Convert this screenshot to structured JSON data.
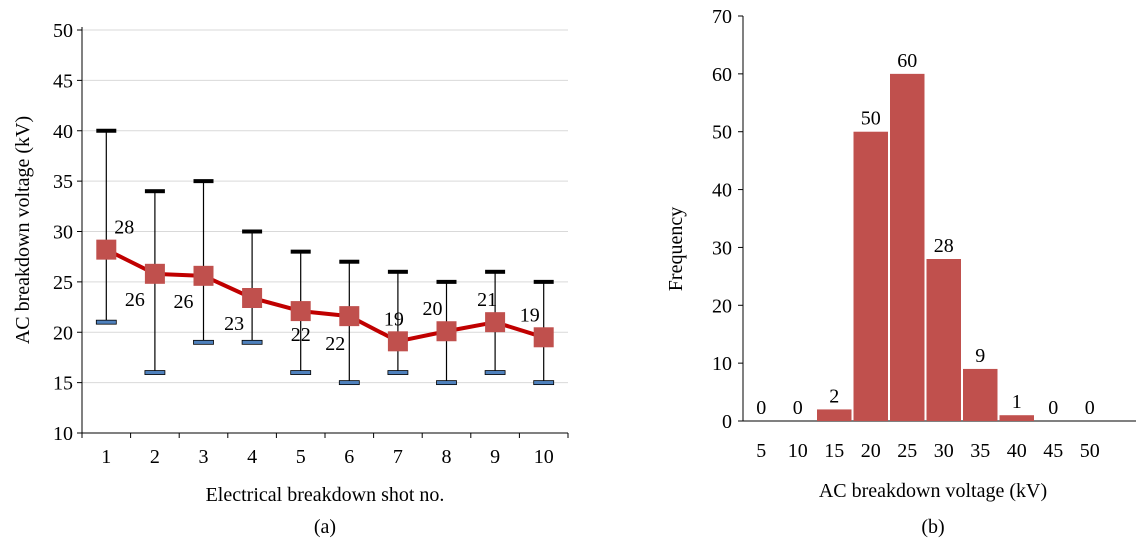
{
  "colors": {
    "line": "#c00000",
    "marker": "#c0504d",
    "bar": "#c0504d",
    "max_cap": "#000000",
    "min_cap": "#4f81bd",
    "grid": "#d9d9d9",
    "axis": "#000000"
  },
  "chart_data": [
    {
      "type": "line",
      "caption": "(a)",
      "xlabel": "Electrical breakdown shot no.",
      "ylabel": "AC breakdown voltage (kV)",
      "ylim": [
        10,
        50
      ],
      "y_ticks": [
        "10",
        "15",
        "20",
        "25",
        "30",
        "35",
        "40",
        "45",
        "50"
      ],
      "grid": true,
      "categories": [
        "1",
        "2",
        "3",
        "4",
        "5",
        "6",
        "7",
        "8",
        "9",
        "10"
      ],
      "series": [
        {
          "values": [
            28.2,
            25.8,
            25.6,
            23.4,
            22.1,
            21.6,
            19.1,
            20.1,
            21.0,
            19.5
          ],
          "data_labels": [
            "28",
            "26",
            "26",
            "23",
            "22",
            "22",
            "19",
            "20",
            "21",
            "19"
          ],
          "max": [
            40,
            34,
            35,
            30,
            28,
            27,
            26,
            25,
            26,
            25
          ],
          "min": [
            21,
            16,
            19,
            19,
            16,
            15,
            16,
            15,
            16,
            15
          ]
        }
      ]
    },
    {
      "type": "bar",
      "caption": "(b)",
      "xlabel": "AC breakdown voltage (kV)",
      "ylabel": "Frequency",
      "ylim": [
        0,
        70
      ],
      "y_ticks": [
        "0",
        "10",
        "20",
        "30",
        "40",
        "50",
        "60",
        "70"
      ],
      "grid": false,
      "categories": [
        "5",
        "10",
        "15",
        "20",
        "25",
        "30",
        "35",
        "40",
        "45",
        "50"
      ],
      "values": [
        0,
        0,
        2,
        50,
        60,
        28,
        9,
        1,
        0,
        0
      ],
      "data_labels": [
        "0",
        "0",
        "2",
        "50",
        "60",
        "28",
        "9",
        "1",
        "0",
        "0"
      ]
    }
  ]
}
